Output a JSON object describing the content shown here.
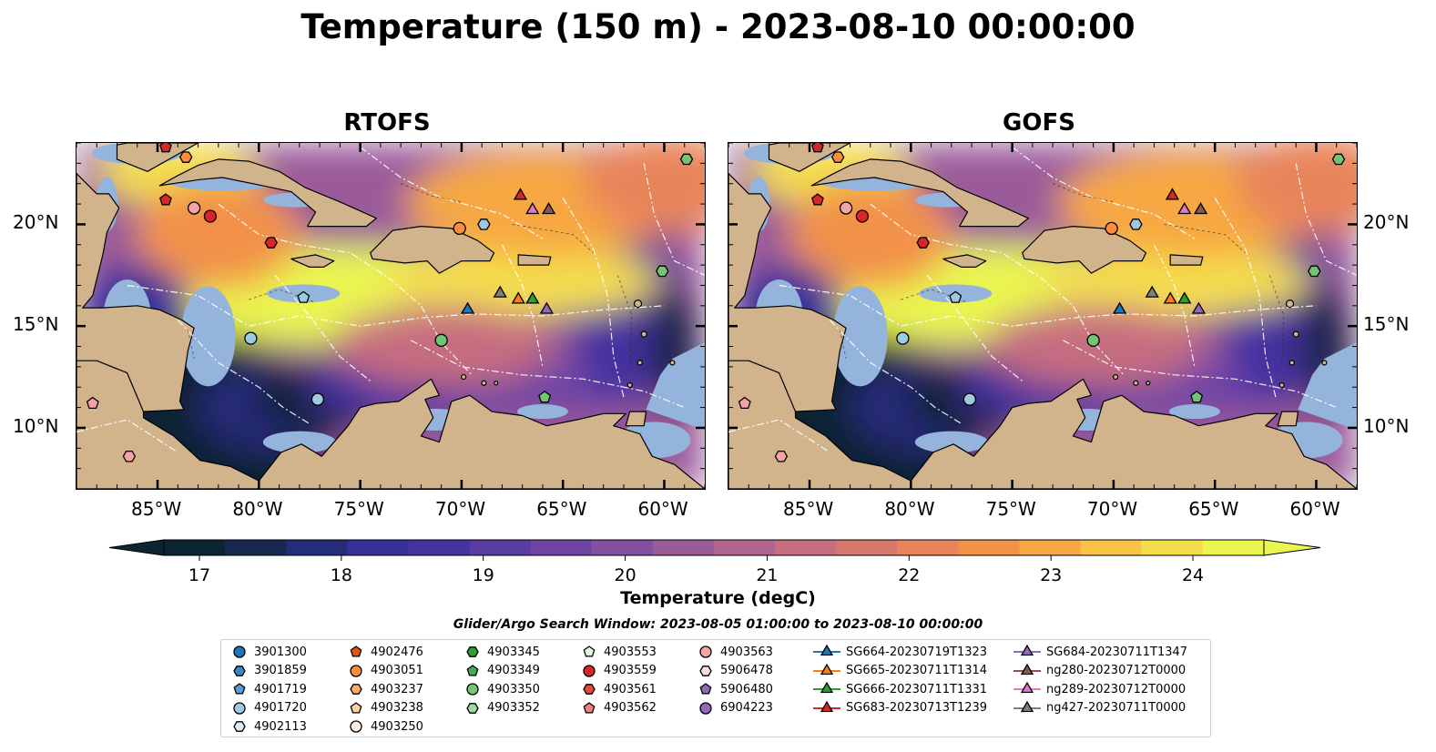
{
  "title": "Temperature (150 m) - 2023-08-10 00:00:00",
  "panels": [
    {
      "title": "RTOFS"
    },
    {
      "title": "GOFS"
    }
  ],
  "axes": {
    "lon_ticks": [
      {
        "lon": -85,
        "label": "85°W"
      },
      {
        "lon": -80,
        "label": "80°W"
      },
      {
        "lon": -75,
        "label": "75°W"
      },
      {
        "lon": -70,
        "label": "70°W"
      },
      {
        "lon": -65,
        "label": "65°W"
      },
      {
        "lon": -60,
        "label": "60°W"
      }
    ],
    "lat_ticks": [
      {
        "lat": 20,
        "label": "20°N"
      },
      {
        "lat": 15,
        "label": "15°N"
      },
      {
        "lat": 10,
        "label": "10°N"
      }
    ],
    "extent": {
      "lon": [
        -89,
        -58
      ],
      "lat": [
        7,
        24
      ]
    }
  },
  "colorbar": {
    "label": "Temperature (degC)",
    "ticks": [
      17,
      18,
      19,
      20,
      21,
      22,
      23,
      24
    ],
    "range": [
      16.75,
      24.5
    ],
    "step": 0.5,
    "colors": [
      "#0d2433",
      "#1a2850",
      "#252c78",
      "#34319a",
      "#4433a0",
      "#5a3ba4",
      "#6f45a4",
      "#844fa0",
      "#9a5a9a",
      "#b06490",
      "#c66d80",
      "#d8776c",
      "#e8845a",
      "#f29248",
      "#f7a843",
      "#f8c348",
      "#f4de4e",
      "#eaf550"
    ]
  },
  "search_window": "Glider/Argo Search Window: 2023-08-05 01:00:00 to 2023-08-10 00:00:00",
  "legend": [
    [
      {
        "label": "3901300",
        "marker": "circle",
        "color": "#1f77b4"
      },
      {
        "label": "3901859",
        "marker": "hexagon",
        "color": "#3a87c4"
      },
      {
        "label": "4901719",
        "marker": "pentagon",
        "color": "#5b9bd5"
      },
      {
        "label": "4901720",
        "marker": "circle",
        "color": "#9ecae1"
      },
      {
        "label": "4902113",
        "marker": "hexagon",
        "color": "#deebf7"
      }
    ],
    [
      {
        "label": "4902476",
        "marker": "pentagon",
        "color": "#e6550d"
      },
      {
        "label": "4903051",
        "marker": "circle",
        "color": "#fd8d3c"
      },
      {
        "label": "4903237",
        "marker": "hexagon",
        "color": "#fdae6b"
      },
      {
        "label": "4903238",
        "marker": "pentagon",
        "color": "#fdd0a2"
      },
      {
        "label": "4903250",
        "marker": "circle",
        "color": "#feedde"
      }
    ],
    [
      {
        "label": "4903345",
        "marker": "hexagon",
        "color": "#2ca02c"
      },
      {
        "label": "4903349",
        "marker": "pentagon",
        "color": "#41ab5d"
      },
      {
        "label": "4903350",
        "marker": "circle",
        "color": "#74c476"
      },
      {
        "label": "4903352",
        "marker": "hexagon",
        "color": "#a1d99b"
      }
    ],
    [
      {
        "label": "4903553",
        "marker": "pentagon",
        "color": "#e5f5e0"
      },
      {
        "label": "4903559",
        "marker": "circle",
        "color": "#d62728"
      },
      {
        "label": "4903561",
        "marker": "hexagon",
        "color": "#e34a33"
      },
      {
        "label": "4903562",
        "marker": "pentagon",
        "color": "#f08080"
      }
    ],
    [
      {
        "label": "4903563",
        "marker": "circle",
        "color": "#f4a4a4"
      },
      {
        "label": "5906478",
        "marker": "hexagon",
        "color": "#fde0dd"
      },
      {
        "label": "5906480",
        "marker": "pentagon",
        "color": "#8c6bb1"
      },
      {
        "label": "6904223",
        "marker": "circle",
        "color": "#9467bd"
      }
    ],
    [
      {
        "label": "SG664-20230719T1323",
        "marker": "triangle",
        "color": "#1f77b4"
      },
      {
        "label": "SG665-20230711T1314",
        "marker": "triangle",
        "color": "#ff7f0e"
      },
      {
        "label": "SG666-20230711T1331",
        "marker": "triangle",
        "color": "#2ca02c"
      },
      {
        "label": "SG683-20230713T1239",
        "marker": "triangle",
        "color": "#d62728"
      }
    ],
    [
      {
        "label": "SG684-20230711T1347",
        "marker": "triangle",
        "color": "#9467bd"
      },
      {
        "label": "ng280-20230712T0000",
        "marker": "triangle",
        "color": "#8c564b"
      },
      {
        "label": "ng289-20230712T0000",
        "marker": "triangle",
        "color": "#e377c2"
      },
      {
        "label": "ng427-20230711T0000",
        "marker": "triangle",
        "color": "#7f7f7f"
      }
    ]
  ],
  "colors": {
    "land": "#d2b48c",
    "shelf": "#94b4dc",
    "deep": "#0d2433"
  }
}
